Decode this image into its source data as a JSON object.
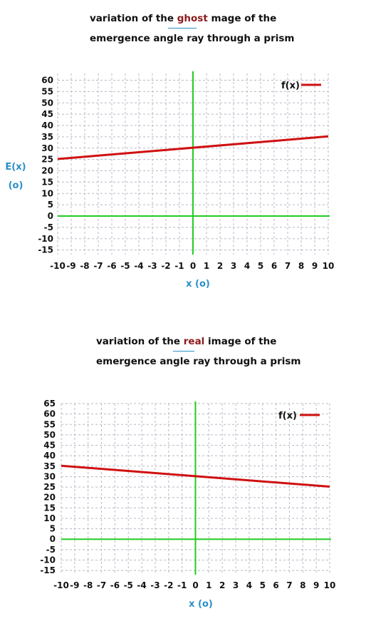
{
  "colors": {
    "series": "#d01010",
    "axes": "#22cc22",
    "grid": "#b8b8c8",
    "axis_label": "#2a8fc9",
    "highlight": "#8b1a1a"
  },
  "chart_data": [
    {
      "type": "line",
      "title_parts": [
        "variation of the ",
        "ghost",
        " mage of the"
      ],
      "title_line2": "emergence angle ray through a prism",
      "xlabel": "x  (o)",
      "ylabel": [
        "E(x)",
        "(o)"
      ],
      "xlim": [
        -10,
        10
      ],
      "ylim": [
        -17,
        63
      ],
      "x_ticks": [
        -10,
        -9,
        -8,
        -7,
        -6,
        -5,
        -4,
        -3,
        -2,
        -1,
        0,
        1,
        2,
        3,
        4,
        5,
        6,
        7,
        8,
        9,
        10
      ],
      "y_ticks": [
        60,
        55,
        50,
        45,
        40,
        35,
        30,
        25,
        20,
        15,
        10,
        5,
        0,
        -5,
        -10,
        -15
      ],
      "legend": "f(x)",
      "legend_position": "top-right",
      "grid": true,
      "series": [
        {
          "name": "f(x)",
          "x": [
            -10,
            10
          ],
          "y": [
            25.2,
            35.2
          ]
        }
      ]
    },
    {
      "type": "line",
      "title_parts": [
        "variation of the ",
        "real",
        " image of the"
      ],
      "title_line2": "emergence angle ray through a prism",
      "xlabel": "x  (o)",
      "ylabel": [
        "",
        ""
      ],
      "xlim": [
        -10,
        10
      ],
      "ylim": [
        -17,
        65
      ],
      "x_ticks": [
        -10,
        -9,
        -8,
        -7,
        -6,
        -5,
        -4,
        -3,
        -2,
        -1,
        0,
        1,
        2,
        3,
        4,
        5,
        6,
        7,
        8,
        9,
        10
      ],
      "y_ticks": [
        65,
        60,
        55,
        50,
        45,
        40,
        35,
        30,
        25,
        20,
        15,
        10,
        5,
        0,
        -5,
        -10,
        -15
      ],
      "legend": "f(x)",
      "legend_position": "top-right",
      "grid": true,
      "series": [
        {
          "name": "f(x)",
          "x": [
            -10,
            10
          ],
          "y": [
            35.2,
            25.2
          ]
        }
      ]
    }
  ]
}
